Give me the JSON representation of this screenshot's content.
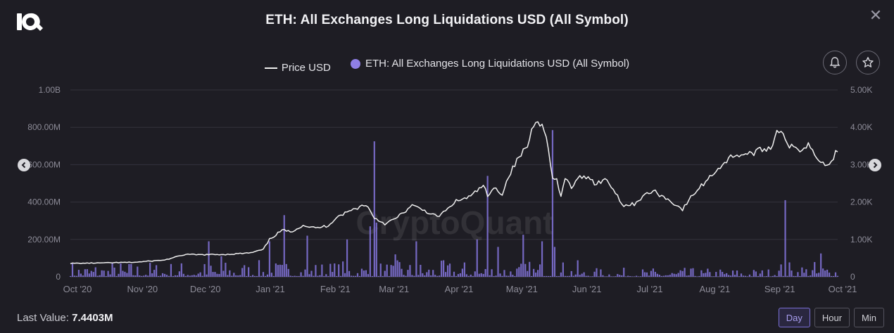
{
  "title": "ETH: All Exchanges Long Liquidations USD (All Symbol)",
  "legend": {
    "price_label": "Price USD",
    "liq_label": "ETH: All Exchanges Long Liquidations USD (All Symbol)"
  },
  "footer": {
    "last_value_label": "Last Value:",
    "last_value": "7.4403M"
  },
  "range_buttons": {
    "day": "Day",
    "hour": "Hour",
    "min": "Min",
    "active": "Day"
  },
  "watermark": "CryptoQuant",
  "colors": {
    "price": "#f0f0f0",
    "bars": "#7d6fd0",
    "legend_dot": "#8f7fe6",
    "background": "#1e1d24"
  },
  "chart_data": {
    "type": "bar+line",
    "x_start": "2020-10-01",
    "x_end": "2021-10-02",
    "x_ticks": [
      "Oct '20",
      "Nov '20",
      "Dec '20",
      "Jan '21",
      "Feb '21",
      "Mar '21",
      "Apr '21",
      "May '21",
      "Jun '21",
      "Jul '21",
      "Aug '21",
      "Sep '21",
      "Oct '21"
    ],
    "left_axis": {
      "ticks": [
        "0",
        "200.00M",
        "400.00M",
        "600.00M",
        "800.00M",
        "1.00B"
      ],
      "range": [
        0,
        1000000000
      ]
    },
    "right_axis": {
      "ticks": [
        "0",
        "1.00K",
        "2.00K",
        "3.00K",
        "4.00K",
        "5.00K"
      ],
      "range": [
        0,
        5000
      ]
    },
    "grid": true,
    "legend_position": "top",
    "series": [
      {
        "name": "Price USD",
        "type": "line",
        "axis": "right",
        "points": [
          [
            "2020-10-01",
            360
          ],
          [
            "2020-10-15",
            370
          ],
          [
            "2020-11-01",
            390
          ],
          [
            "2020-11-15",
            450
          ],
          [
            "2020-11-25",
            600
          ],
          [
            "2020-12-01",
            590
          ],
          [
            "2020-12-15",
            600
          ],
          [
            "2020-12-26",
            640
          ],
          [
            "2021-01-01",
            730
          ],
          [
            "2021-01-04",
            1000
          ],
          [
            "2021-01-10",
            1250
          ],
          [
            "2021-01-14",
            1200
          ],
          [
            "2021-01-20",
            1380
          ],
          [
            "2021-01-26",
            1300
          ],
          [
            "2021-02-01",
            1370
          ],
          [
            "2021-02-05",
            1600
          ],
          [
            "2021-02-12",
            1780
          ],
          [
            "2021-02-19",
            1940
          ],
          [
            "2021-02-23",
            1580
          ],
          [
            "2021-02-28",
            1420
          ],
          [
            "2021-03-05",
            1550
          ],
          [
            "2021-03-13",
            1900
          ],
          [
            "2021-03-18",
            1800
          ],
          [
            "2021-03-25",
            1600
          ],
          [
            "2021-03-31",
            1850
          ],
          [
            "2021-04-02",
            2000
          ],
          [
            "2021-04-10",
            2150
          ],
          [
            "2021-04-16",
            2450
          ],
          [
            "2021-04-18",
            2150
          ],
          [
            "2021-04-22",
            2400
          ],
          [
            "2021-04-25",
            2200
          ],
          [
            "2021-04-28",
            2700
          ],
          [
            "2021-05-03",
            3200
          ],
          [
            "2021-05-07",
            3500
          ],
          [
            "2021-05-10",
            4100
          ],
          [
            "2021-05-12",
            4250
          ],
          [
            "2021-05-15",
            3900
          ],
          [
            "2021-05-17",
            3500
          ],
          [
            "2021-05-19",
            2600
          ],
          [
            "2021-05-21",
            2600
          ],
          [
            "2021-05-23",
            2100
          ],
          [
            "2021-05-25",
            2650
          ],
          [
            "2021-05-28",
            2400
          ],
          [
            "2021-06-01",
            2650
          ],
          [
            "2021-06-05",
            2700
          ],
          [
            "2021-06-08",
            2500
          ],
          [
            "2021-06-14",
            2600
          ],
          [
            "2021-06-22",
            1900
          ],
          [
            "2021-06-27",
            1950
          ],
          [
            "2021-07-01",
            2150
          ],
          [
            "2021-07-06",
            2300
          ],
          [
            "2021-07-15",
            2000
          ],
          [
            "2021-07-20",
            1800
          ],
          [
            "2021-07-25",
            2200
          ],
          [
            "2021-07-31",
            2550
          ],
          [
            "2021-08-05",
            2850
          ],
          [
            "2021-08-13",
            3250
          ],
          [
            "2021-08-22",
            3300
          ],
          [
            "2021-09-01",
            3500
          ],
          [
            "2021-09-03",
            3950
          ],
          [
            "2021-09-06",
            3900
          ],
          [
            "2021-09-08",
            3500
          ],
          [
            "2021-09-14",
            3400
          ],
          [
            "2021-09-18",
            3550
          ],
          [
            "2021-09-24",
            3100
          ],
          [
            "2021-09-27",
            2950
          ],
          [
            "2021-10-01",
            3300
          ],
          [
            "2021-10-02",
            3400
          ]
        ]
      },
      {
        "name": "ETH: All Exchanges Long Liquidations USD (All Symbol)",
        "type": "bar",
        "axis": "left",
        "note": "approximate; daily bars, baseline values estimated",
        "spikes": [
          [
            "2020-12-06",
            190000000
          ],
          [
            "2020-12-12",
            110000000
          ],
          [
            "2021-01-04",
            190000000
          ],
          [
            "2021-01-11",
            330000000
          ],
          [
            "2021-01-22",
            220000000
          ],
          [
            "2021-02-10",
            200000000
          ],
          [
            "2021-02-21",
            270000000
          ],
          [
            "2021-02-23",
            725000000
          ],
          [
            "2021-02-24",
            290000000
          ],
          [
            "2021-03-05",
            120000000
          ],
          [
            "2021-03-15",
            190000000
          ],
          [
            "2021-04-13",
            200000000
          ],
          [
            "2021-04-18",
            540000000
          ],
          [
            "2021-04-23",
            160000000
          ],
          [
            "2021-05-05",
            225000000
          ],
          [
            "2021-05-14",
            190000000
          ],
          [
            "2021-05-19",
            785000000
          ],
          [
            "2021-05-20",
            160000000
          ],
          [
            "2021-09-07",
            410000000
          ],
          [
            "2021-09-24",
            125000000
          ]
        ],
        "baseline_range": [
          4000000,
          90000000
        ]
      }
    ]
  }
}
